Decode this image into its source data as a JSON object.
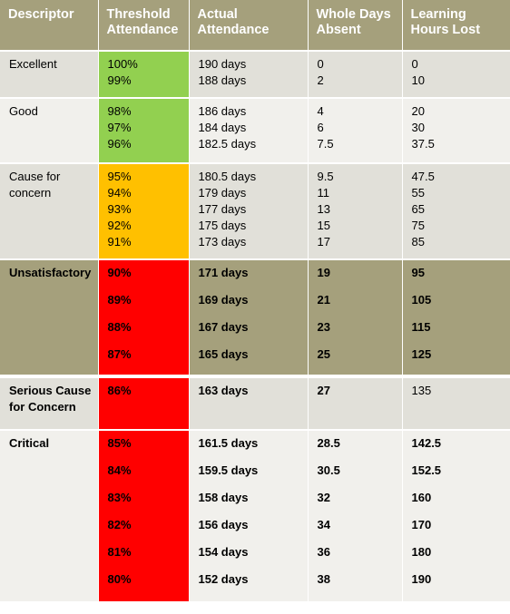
{
  "headers": {
    "descriptor": [
      "Descriptor"
    ],
    "threshold": [
      "Threshold",
      "Attendance"
    ],
    "actual": [
      "Actual",
      "Attendance"
    ],
    "days_absent": [
      "Whole Days",
      "Absent"
    ],
    "hours_lost": [
      "Learning",
      "Hours Lost"
    ]
  },
  "rows": [
    {
      "descriptor": [
        "Excellent"
      ],
      "threshold_color": "#92d050",
      "threshold": [
        "100%",
        "99%"
      ],
      "actual": [
        "190 days",
        "188 days"
      ],
      "absent": [
        "0",
        "2"
      ],
      "hours": [
        "0",
        "10"
      ]
    },
    {
      "descriptor": [
        "Good"
      ],
      "threshold_color": "#92d050",
      "threshold": [
        "98%",
        "97%",
        "96%"
      ],
      "actual": [
        "186 days",
        "184 days",
        "182.5 days"
      ],
      "absent": [
        "4",
        "6",
        "7.5"
      ],
      "hours": [
        "20",
        "30",
        "37.5"
      ]
    },
    {
      "descriptor": [
        "Cause for",
        "concern"
      ],
      "threshold_color": "#ffc000",
      "threshold": [
        "95%",
        "94%",
        "93%",
        "92%",
        "91%"
      ],
      "actual": [
        "180.5 days",
        "179 days",
        "177 days",
        "175 days",
        "173 days"
      ],
      "absent": [
        "9.5",
        "11",
        "13",
        "15",
        "17"
      ],
      "hours": [
        "47.5",
        "55",
        "65",
        "75",
        "85"
      ]
    },
    {
      "descriptor": [
        "Unsatisfactory"
      ],
      "threshold_color": "#ff0000",
      "threshold": [
        "90%",
        "89%",
        "88%",
        "87%"
      ],
      "actual": [
        "171 days",
        "169 days",
        "167 days",
        "165 days"
      ],
      "absent": [
        "19",
        "21",
        "23",
        "25"
      ],
      "hours": [
        "95",
        "105",
        "115",
        "125"
      ]
    },
    {
      "descriptor": [
        "Serious Cause",
        "for Concern"
      ],
      "threshold_color": "#ff0000",
      "threshold": [
        "86%"
      ],
      "actual": [
        "163 days"
      ],
      "absent": [
        "27"
      ],
      "hours": [
        "135"
      ]
    },
    {
      "descriptor": [
        "Critical"
      ],
      "threshold_color": "#ff0000",
      "threshold": [
        "85%",
        "84%",
        "83%",
        "82%",
        "81%",
        "80%"
      ],
      "actual": [
        "161.5 days",
        "159.5 days",
        "158 days",
        "156 days",
        "154 days",
        "152 days"
      ],
      "absent": [
        "28.5",
        "30.5",
        "32",
        "34",
        "36",
        "38"
      ],
      "hours": [
        "142.5",
        "152.5",
        "160",
        "170",
        "180",
        "190"
      ]
    }
  ]
}
